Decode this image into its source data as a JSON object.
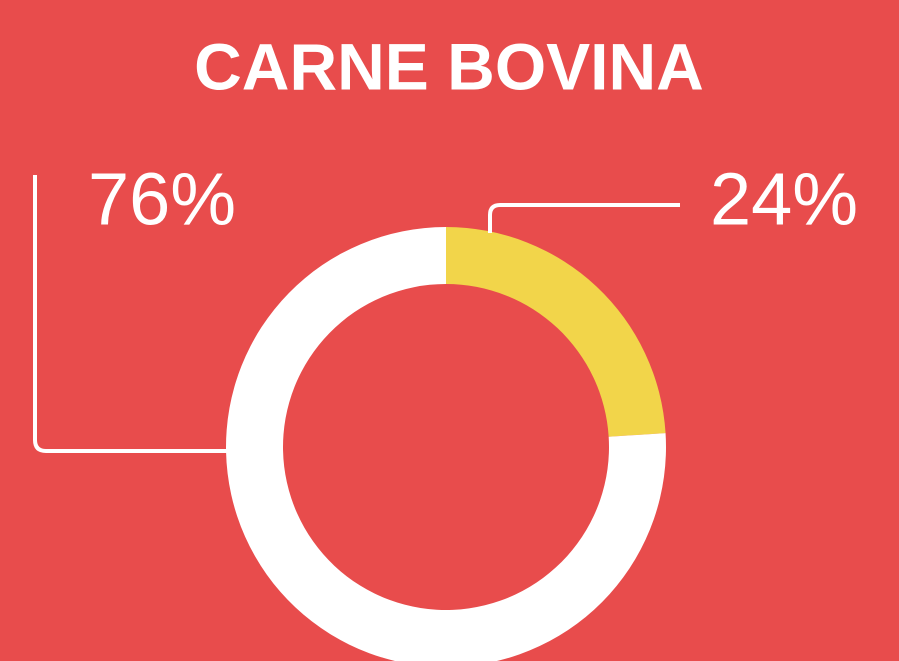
{
  "chart_data": {
    "type": "pie",
    "title": "CARNE BOVINA",
    "donut": true,
    "values": [
      24,
      76
    ],
    "value_labels": [
      "24%",
      "76%"
    ],
    "colors": [
      "#f2d54a",
      "#ffffff"
    ]
  }
}
